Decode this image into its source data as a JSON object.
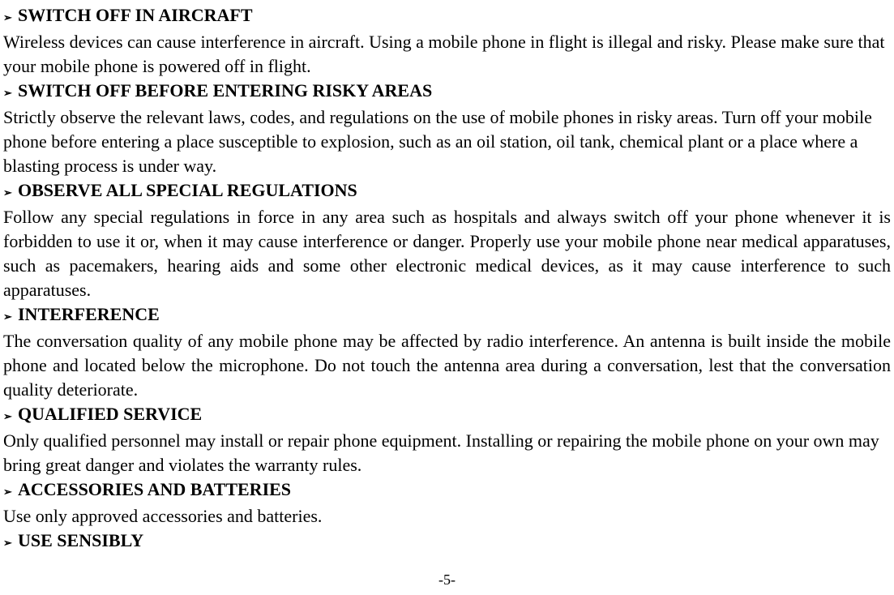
{
  "sections": [
    {
      "heading": "SWITCH OFF IN AIRCRAFT",
      "body": "Wireless devices can cause interference in aircraft. Using a mobile phone in flight is illegal and risky. Please make sure that your mobile phone is powered off in flight.",
      "justify": false
    },
    {
      "heading": "SWITCH OFF BEFORE ENTERING RISKY AREAS",
      "body": "Strictly observe the relevant laws, codes, and regulations on the use of mobile phones in risky areas. Turn off your mobile phone before entering a place susceptible to explosion, such as an oil station, oil tank, chemical plant or a place where a blasting process is under way.",
      "justify": false
    },
    {
      "heading": "OBSERVE ALL SPECIAL REGULATIONS",
      "body": "Follow any special regulations in force in any area such as hospitals and always switch off your phone whenever it is forbidden to use it or, when it may cause interference or danger. Properly use your mobile phone near medical apparatuses, such as pacemakers, hearing aids and some other electronic medical devices, as it may cause interference to such apparatuses.",
      "justify": true
    },
    {
      "heading": "INTERFERENCE",
      "body": "The conversation quality of any mobile phone may be affected by radio interference. An antenna is built inside the mobile phone and located below the microphone. Do not touch the antenna area during a conversation, lest that the conversation quality deteriorate.",
      "justify": true
    },
    {
      "heading": "QUALIFIED SERVICE",
      "body": "Only qualified personnel may install or repair phone equipment. Installing or repairing the mobile phone on your own may bring great danger and violates the warranty rules.",
      "justify": false
    },
    {
      "heading": "ACCESSORIES AND BATTERIES",
      "body": "Use only approved accessories and batteries.",
      "justify": false
    },
    {
      "heading": "USE SENSIBLY",
      "body": "",
      "justify": false
    }
  ],
  "bullet_glyph": "➢",
  "page_number": "-5-",
  "colors": {
    "text": "#000000",
    "background": "#ffffff"
  },
  "typography": {
    "heading_fontsize": 22,
    "body_fontsize": 22,
    "bullet_fontsize": 13,
    "footer_fontsize": 18,
    "line_height": 30,
    "font_family": "Times New Roman"
  }
}
